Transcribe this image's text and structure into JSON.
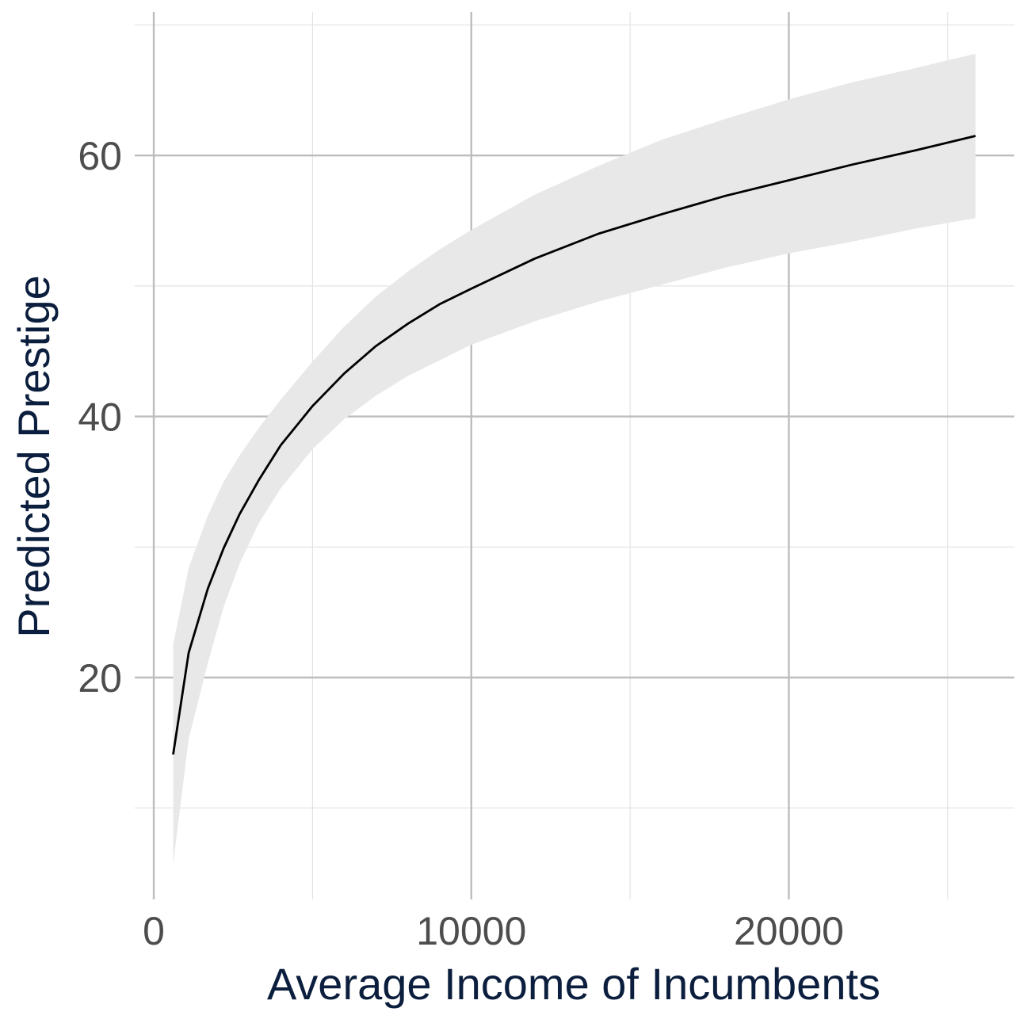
{
  "chart_data": {
    "type": "line",
    "title": "",
    "xlabel": "Average Income of Incumbents",
    "ylabel": "Predicted Prestige",
    "xlim": [
      -600,
      27100
    ],
    "ylim": [
      3,
      71
    ],
    "x_ticks": [
      0,
      10000,
      20000
    ],
    "x_tick_labels": [
      "0",
      "10000",
      "20000"
    ],
    "x_minor_ticks": [
      5000,
      15000,
      25000
    ],
    "y_ticks": [
      20,
      40,
      60
    ],
    "y_tick_labels": [
      "20",
      "40",
      "60"
    ],
    "y_minor_ticks": [
      10,
      30,
      50,
      70
    ],
    "grid": true,
    "legend": "none",
    "colors": {
      "line": "#000000",
      "ribbon": "#e8e8e8",
      "grid_major": "#bdbdbd",
      "grid_minor": "#e3e3e3",
      "tick_text": "#4d4d4d",
      "axis_title": "#0b1e3d"
    },
    "series": [
      {
        "type": "line",
        "x": [
          611,
          1100,
          1700,
          2200,
          2700,
          3300,
          4000,
          5000,
          6000,
          7000,
          8000,
          9000,
          10000,
          12000,
          14000,
          16000,
          18000,
          20000,
          22000,
          24000,
          25879
        ],
        "y": [
          14.1,
          21.9,
          26.8,
          29.9,
          32.5,
          35.1,
          37.8,
          40.8,
          43.3,
          45.4,
          47.1,
          48.6,
          49.8,
          52.1,
          54.0,
          55.5,
          56.9,
          58.1,
          59.3,
          60.4,
          61.5
        ]
      },
      {
        "type": "ribbon",
        "x": [
          611,
          1100,
          1700,
          2200,
          2700,
          3300,
          4000,
          5000,
          6000,
          7000,
          8000,
          9000,
          10000,
          12000,
          14000,
          16000,
          18000,
          20000,
          22000,
          24000,
          25879
        ],
        "lower": [
          5.7,
          15.3,
          21.1,
          25.4,
          28.7,
          31.8,
          34.5,
          37.5,
          39.8,
          41.6,
          43.1,
          44.3,
          45.5,
          47.3,
          48.8,
          50.1,
          51.4,
          52.5,
          53.4,
          54.4,
          55.2
        ],
        "upper": [
          22.5,
          28.4,
          32.4,
          35.0,
          37.0,
          39.1,
          41.3,
          44.2,
          46.9,
          49.2,
          51.1,
          52.8,
          54.3,
          57.0,
          59.2,
          61.2,
          62.8,
          64.3,
          65.6,
          66.7,
          67.8
        ]
      }
    ]
  }
}
